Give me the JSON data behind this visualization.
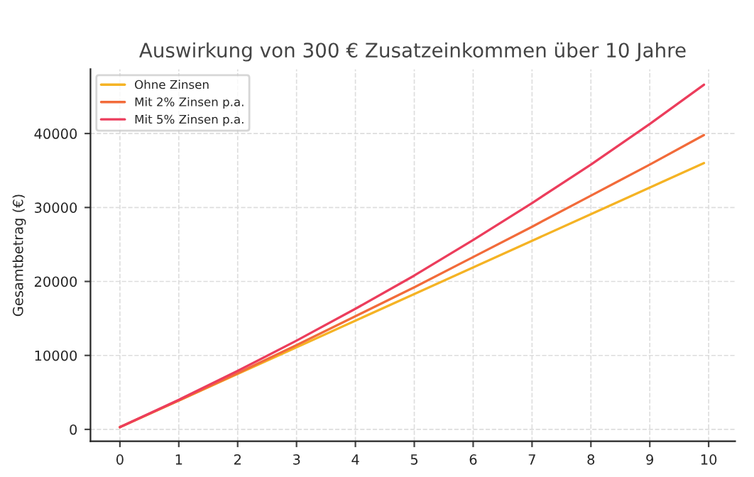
{
  "chart_data": {
    "type": "line",
    "title": "Auswirkung von 300 € Zusatzeinkommen über 10 Jahre",
    "ylabel": "Gesamtbetrag (€)",
    "x": [
      0,
      1,
      2,
      3,
      4,
      5,
      6,
      7,
      8,
      9,
      9.92
    ],
    "series": [
      {
        "name": "Ohne Zinsen",
        "color": "#f5b324",
        "values": [
          300,
          3900,
          7500,
          11100,
          14700,
          18300,
          21900,
          25500,
          29100,
          32700,
          36000
        ]
      },
      {
        "name": "Mit 2% Zinsen p.a.",
        "color": "#f26b3a",
        "values": [
          300,
          3900,
          7600,
          11400,
          15300,
          19200,
          23300,
          27400,
          31600,
          35800,
          39800
        ]
      },
      {
        "name": "Mit 5% Zinsen p.a.",
        "color": "#ec3d5c",
        "values": [
          300,
          4000,
          7900,
          12000,
          16300,
          20800,
          25600,
          30600,
          35800,
          41300,
          46600
        ]
      }
    ],
    "xlim": [
      -0.5,
      10.45
    ],
    "xticks": [
      0,
      1,
      2,
      3,
      4,
      5,
      6,
      7,
      8,
      9,
      10
    ],
    "ylim": [
      -1600,
      48700
    ],
    "yticks": [
      0,
      10000,
      20000,
      30000,
      40000
    ],
    "grid": true,
    "legend": "top left",
    "marker": "none",
    "line_style": "solid"
  }
}
